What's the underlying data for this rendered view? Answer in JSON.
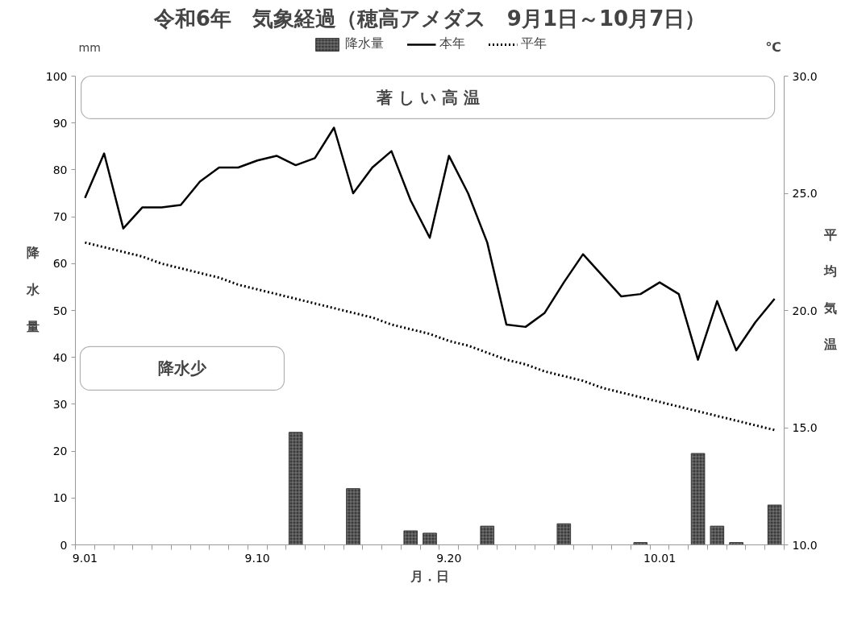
{
  "chart_data": {
    "type": "bar",
    "title": "令和6年　気象経過（穂高アメダス　9月1日～10月7日）",
    "xlabel": "月．日",
    "ylabel": "降水量",
    "y2label": "平均気温",
    "categories": [
      "9.01",
      null,
      null,
      null,
      null,
      null,
      null,
      null,
      null,
      "9.10",
      null,
      null,
      null,
      null,
      null,
      null,
      null,
      null,
      null,
      "9.20",
      null,
      null,
      null,
      null,
      null,
      null,
      null,
      null,
      null,
      null,
      "10.01",
      null,
      null,
      null,
      null,
      null,
      null
    ],
    "series": [
      {
        "name": "降水量",
        "color": "#3a3a3a",
        "values": [
          0,
          0,
          0,
          0,
          0,
          0,
          0,
          0,
          0,
          0,
          0,
          24,
          0,
          0,
          12,
          0,
          0,
          3,
          2.5,
          0,
          0,
          4,
          0,
          0,
          0,
          4.5,
          0,
          0,
          0,
          0.5,
          0,
          0,
          19.5,
          4,
          0.5,
          0,
          8.5
        ]
      },
      {
        "name": "本年",
        "type": "line",
        "axis": "y2",
        "color": "#000000",
        "line_style": "solid",
        "values": [
          24.8,
          26.7,
          23.5,
          24.4,
          24.4,
          24.5,
          25.5,
          26.1,
          26.1,
          26.4,
          26.6,
          26.2,
          26.5,
          27.8,
          25.0,
          26.1,
          26.8,
          24.7,
          23.1,
          26.6,
          25.0,
          22.9,
          19.4,
          19.3,
          19.9,
          21.2,
          22.4,
          21.5,
          20.6,
          20.7,
          21.2,
          20.7,
          17.9,
          20.4,
          18.3,
          19.5,
          20.5
        ]
      },
      {
        "name": "平年",
        "type": "line",
        "axis": "y2",
        "color": "#000000",
        "line_style": "dotted",
        "values": [
          22.9,
          22.7,
          22.5,
          22.3,
          22.0,
          21.8,
          21.6,
          21.4,
          21.1,
          20.9,
          20.7,
          20.5,
          20.3,
          20.1,
          19.9,
          19.7,
          19.4,
          19.2,
          19.0,
          18.7,
          18.5,
          18.2,
          17.9,
          17.7,
          17.4,
          17.2,
          17.0,
          16.7,
          16.5,
          16.3,
          16.1,
          15.9,
          15.7,
          15.5,
          15.3,
          15.1,
          14.9
        ]
      }
    ],
    "ylim": [
      0,
      100
    ],
    "yticks": [
      0,
      10,
      20,
      30,
      40,
      50,
      60,
      70,
      80,
      90,
      100
    ],
    "y2lim": [
      10,
      30
    ],
    "y2ticks": [
      {
        "value": 10,
        "label": "10.0"
      },
      {
        "value": 15,
        "label": "15.0"
      },
      {
        "value": 20,
        "label": "20.0"
      },
      {
        "value": 25,
        "label": "25.0"
      },
      {
        "value": 30,
        "label": "30.0"
      }
    ],
    "legend": "top",
    "annotations": [
      "著 し い 高 温",
      "降水少",
      "mm",
      "℃"
    ]
  }
}
